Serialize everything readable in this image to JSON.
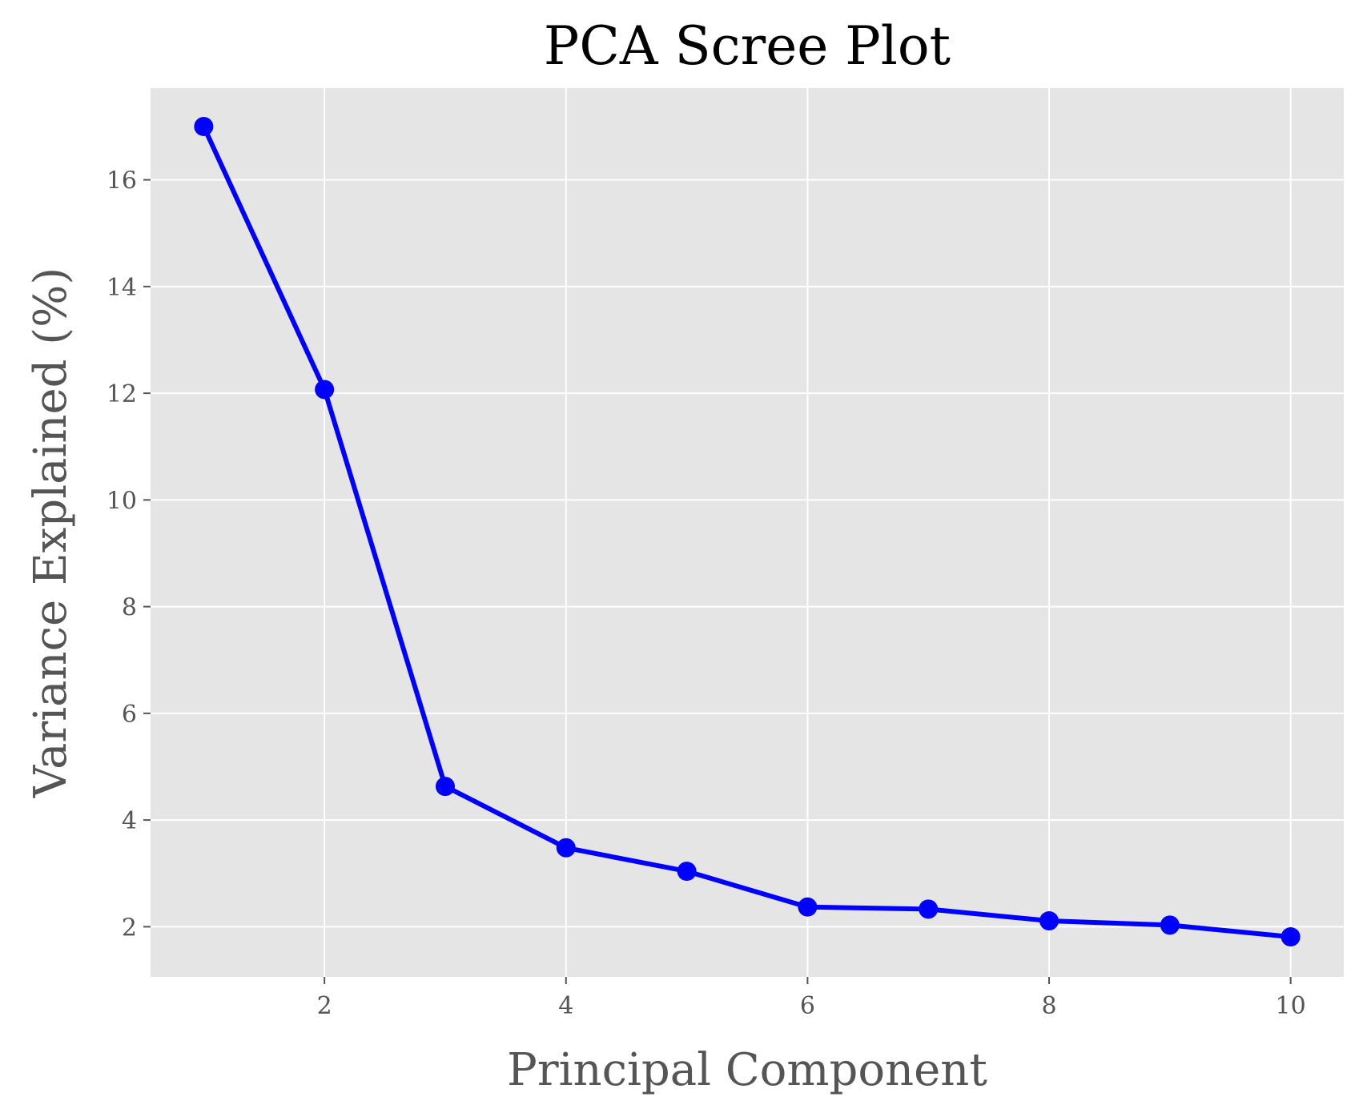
{
  "chart_data": {
    "type": "line",
    "title": "PCA Scree Plot",
    "xlabel": "Principal Component",
    "ylabel": "Variance Explained (%)",
    "x": [
      1,
      2,
      3,
      4,
      5,
      6,
      7,
      8,
      9,
      10
    ],
    "series": [
      {
        "values": [
          17.0,
          12.07,
          4.63,
          3.48,
          3.04,
          2.37,
          2.33,
          2.11,
          2.03,
          1.81
        ],
        "color": "#0000ff",
        "marker": "circle"
      }
    ],
    "xticks": [
      2,
      4,
      6,
      8,
      10
    ],
    "yticks": [
      2,
      4,
      6,
      8,
      10,
      12,
      14,
      16
    ],
    "xlim": [
      0.56,
      10.44
    ],
    "ylim": [
      1.06,
      17.72
    ],
    "grid": true,
    "plot_background": "#e5e5e5",
    "grid_color": "#ffffff",
    "tick_color": "#555555"
  }
}
